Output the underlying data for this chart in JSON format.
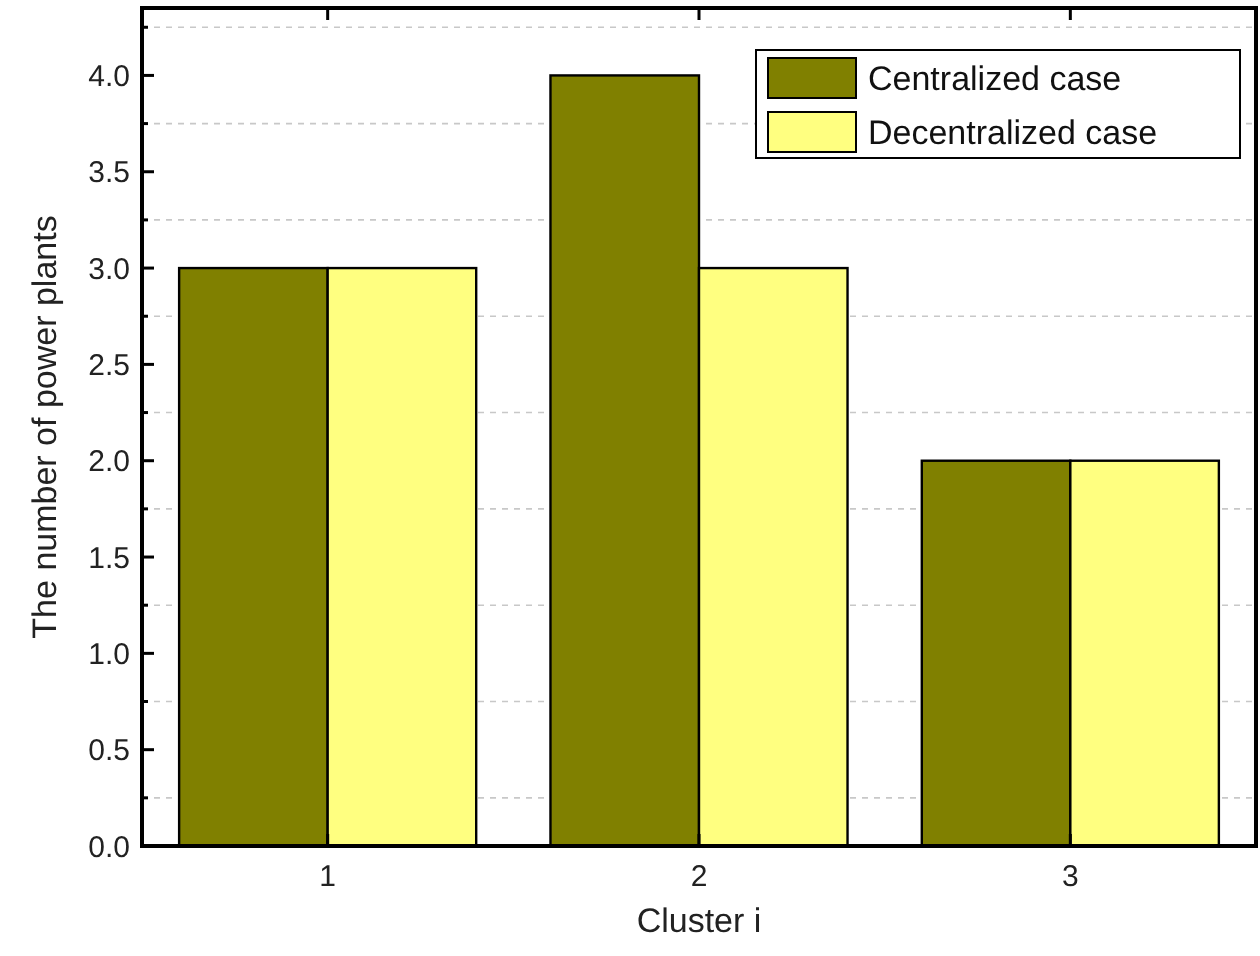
{
  "chart_data": {
    "type": "bar",
    "xlabel": "Cluster i",
    "ylabel": "The number of power plants",
    "categories": [
      "1",
      "2",
      "3"
    ],
    "series": [
      {
        "name": "Centralized case",
        "color": "#808000",
        "values": [
          3,
          4,
          2
        ]
      },
      {
        "name": "Decentralized case",
        "color": "#ffff80",
        "values": [
          3,
          3,
          2
        ]
      }
    ],
    "ylim": [
      0,
      4.35
    ],
    "yticks": [
      {
        "value": 0,
        "label": "0.0"
      },
      {
        "value": 0.25,
        "label": null
      },
      0.5,
      {
        "value": 0.75,
        "label": null
      },
      {
        "value": 1,
        "label": "1.0"
      },
      {
        "value": 1.25,
        "label": null
      },
      1.5,
      {
        "value": 1.75,
        "label": null
      },
      {
        "value": 2,
        "label": "2.0"
      },
      {
        "value": 2.25,
        "label": null
      },
      2.5,
      {
        "value": 2.75,
        "label": null
      },
      {
        "value": 3,
        "label": "3.0"
      },
      {
        "value": 3.25,
        "label": null
      },
      3.5,
      {
        "value": 3.75,
        "label": null
      },
      {
        "value": 4,
        "label": "4.0"
      },
      {
        "value": 4.25,
        "label": null
      }
    ],
    "grid": "y",
    "legend": "top right"
  }
}
